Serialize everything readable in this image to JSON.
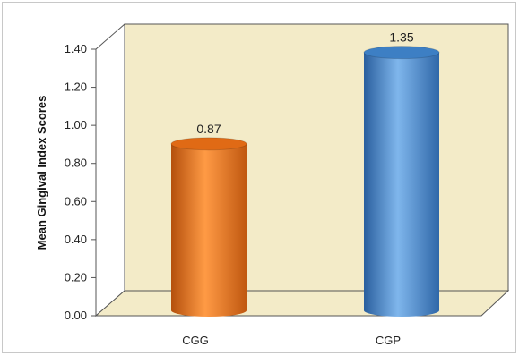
{
  "chart_data": {
    "type": "bar",
    "categories": [
      "CGG",
      "CGP"
    ],
    "values": [
      0.87,
      1.35
    ],
    "data_labels": [
      "0.87",
      "1.35"
    ],
    "title": "",
    "xlabel": "",
    "ylabel": "Mean Gingival Index Scores",
    "ylim": [
      0,
      1.4
    ],
    "yticks": [
      "0.00",
      "0.20",
      "0.40",
      "0.60",
      "0.80",
      "1.00",
      "1.20",
      "1.40"
    ],
    "grid": false,
    "legend": "none",
    "bar_style": "3d-cylinder",
    "colors": {
      "CGG": "#f07a22",
      "CGP": "#4a8fd4",
      "plot_background": "#f3ebc8"
    }
  }
}
